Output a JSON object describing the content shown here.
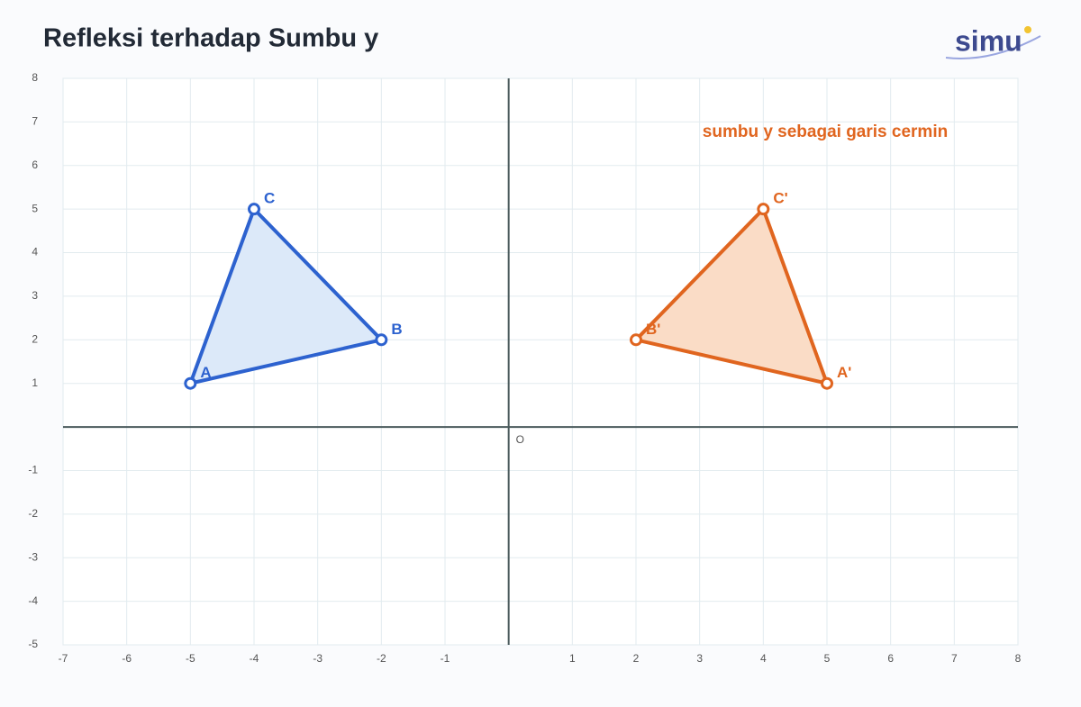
{
  "chart_data": {
    "type": "polygon",
    "title": "Refleksi terhadap Sumbu y",
    "logo": "simu",
    "annotation": "sumbu y sebagai garis cermin",
    "origin_label": "O",
    "xlim": [
      -7,
      8
    ],
    "ylim": [
      -5,
      8
    ],
    "xticks": [
      -7,
      -6,
      -5,
      -4,
      -3,
      -2,
      -1,
      1,
      2,
      3,
      4,
      5,
      6,
      7,
      8
    ],
    "yticks": [
      -5,
      -4,
      -3,
      -2,
      -1,
      1,
      2,
      3,
      4,
      5,
      6,
      7,
      8
    ],
    "grid": true,
    "series": [
      {
        "color": "#2d62cf",
        "fill": "#dce9f9",
        "labels": [
          "A",
          "B",
          "C"
        ],
        "x": [
          -5,
          -2,
          -4
        ],
        "values": [
          1,
          2,
          5
        ]
      },
      {
        "color": "#e0651f",
        "fill": "#fadcc6",
        "labels": [
          "A'",
          "B'",
          "C'"
        ],
        "x": [
          5,
          2,
          4
        ],
        "values": [
          1,
          2,
          5
        ]
      }
    ]
  }
}
